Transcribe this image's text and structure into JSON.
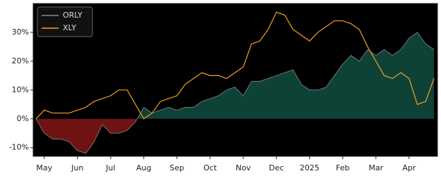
{
  "chart_data": {
    "type": "line",
    "categories": [
      null,
      "May",
      null,
      null,
      null,
      "Jun",
      null,
      null,
      null,
      "Jul",
      null,
      null,
      null,
      "Aug",
      null,
      null,
      null,
      "Sep",
      null,
      null,
      null,
      "Oct",
      null,
      null,
      null,
      "Nov",
      null,
      null,
      null,
      "Dec",
      null,
      null,
      null,
      "2025",
      null,
      null,
      null,
      "Feb",
      null,
      null,
      null,
      "Mar",
      null,
      null,
      null,
      "Apr",
      null,
      null,
      null
    ],
    "series": [
      {
        "name": "ORLY",
        "color": "#8a8a8a",
        "fill_positive": "#0e4237",
        "fill_negative": "#6e1212",
        "values": [
          0,
          -5,
          -7,
          -7,
          -8,
          -11,
          -12,
          -8,
          -2,
          -5,
          -5,
          -4,
          -1,
          4,
          2,
          3,
          4,
          3,
          4,
          4,
          6,
          7,
          8,
          10,
          11,
          8,
          13,
          13,
          14,
          15,
          16,
          17,
          12,
          10,
          10,
          11,
          15,
          19,
          22,
          20,
          24,
          22,
          24,
          22,
          24,
          28,
          30,
          26,
          24
        ]
      },
      {
        "name": "XLY",
        "color": "#f5a21f",
        "values": [
          0,
          3,
          2,
          2,
          2,
          3,
          4,
          6,
          7,
          8,
          10,
          10,
          5,
          0,
          2,
          6,
          7,
          8,
          12,
          14,
          16,
          15,
          15,
          14,
          16,
          18,
          26,
          27,
          31,
          37,
          36,
          31,
          29,
          27,
          30,
          32,
          34,
          34,
          33,
          31,
          25,
          20,
          15,
          14,
          16,
          14,
          5,
          6,
          14
        ]
      }
    ],
    "ylim": [
      -13,
      40
    ],
    "yticks": [
      {
        "value": -10,
        "label": "-10%"
      },
      {
        "value": 0,
        "label": "0%"
      },
      {
        "value": 10,
        "label": "10%"
      },
      {
        "value": 20,
        "label": "20%"
      },
      {
        "value": 30,
        "label": "30%"
      }
    ],
    "legend": "upper left",
    "background": "#000000"
  }
}
